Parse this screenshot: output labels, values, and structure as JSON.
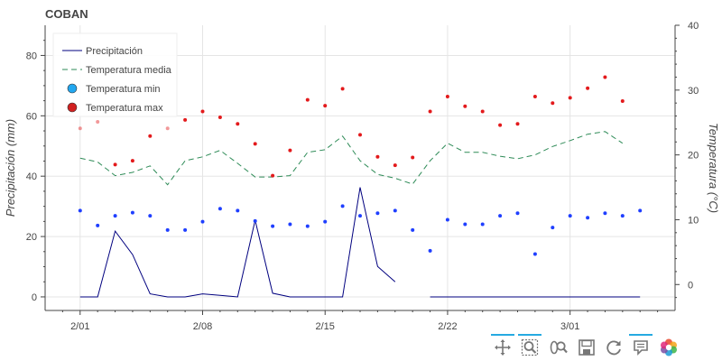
{
  "chart_data": {
    "type": "line+scatter",
    "title": "COBAN",
    "xlabel": "",
    "ylabel_left": "Precipitación (mm)",
    "ylabel_right": "Temperatura (°C)",
    "x_tick_labels": [
      "2/01",
      "2/08",
      "2/15",
      "2/22",
      "3/01"
    ],
    "ylim_left": [
      -4.5,
      90
    ],
    "ylim_right": [
      -4,
      40
    ],
    "yticks_left": [
      0,
      20,
      40,
      60,
      80
    ],
    "yticks_right": [
      0,
      10,
      20,
      30,
      40
    ],
    "grid": true,
    "legend_position": "top-left",
    "x_days": [
      0,
      1,
      2,
      3,
      4,
      5,
      6,
      7,
      8,
      9,
      10,
      11,
      12,
      13,
      14,
      15,
      16,
      17,
      18,
      19,
      20,
      21,
      22,
      23,
      24,
      25,
      26,
      27,
      28,
      29,
      30,
      31,
      32
    ],
    "series": [
      {
        "name": "Precipitación",
        "kind": "line",
        "axis": "left",
        "color": "#00007f",
        "values": [
          0,
          0,
          21.8,
          14,
          1,
          0,
          0,
          1,
          0.5,
          0,
          25.4,
          1.2,
          0,
          0,
          0,
          0,
          36.3,
          10.1,
          5,
          null,
          0,
          0,
          0,
          0,
          0,
          0,
          0,
          0,
          0,
          0,
          0,
          0,
          0
        ]
      },
      {
        "name": "Temperatura media",
        "kind": "dashed-line",
        "axis": "right",
        "color": "#2e8b57",
        "values": [
          19.5,
          18.9,
          16.8,
          17.3,
          18.3,
          15.4,
          19.1,
          19.7,
          20.7,
          18.7,
          16.6,
          16.6,
          16.8,
          20.4,
          20.8,
          22.9,
          19.1,
          17,
          16.4,
          15.5,
          19.1,
          21.8,
          20.4,
          20.4,
          19.8,
          19.4,
          20,
          21.3,
          22.2,
          23.2,
          23.6,
          21.8,
          null
        ],
        "x_offset": 0
      },
      {
        "name": "Temperatura min",
        "kind": "scatter",
        "axis": "right",
        "color": "#1f3fff",
        "values": [
          11.4,
          9.1,
          10.6,
          11.1,
          10.6,
          8.4,
          8.4,
          9.7,
          11.7,
          11.4,
          9.8,
          9.0,
          9.3,
          9.0,
          9.7,
          12.1,
          10.6,
          11.0,
          11.4,
          8.4,
          5.2,
          10.0,
          9.3,
          9.3,
          10.6,
          11.0,
          4.7,
          8.8,
          10.6,
          10.3,
          11.0,
          10.6,
          11.4
        ]
      },
      {
        "name": "Temperatura max",
        "kind": "scatter",
        "axis": "right",
        "color": "#e31a1c",
        "values": [
          24.1,
          25.1,
          18.5,
          19.1,
          22.9,
          24.1,
          25.4,
          26.7,
          25.8,
          24.8,
          21.7,
          16.8,
          20.7,
          28.5,
          27.6,
          30.2,
          23.1,
          19.7,
          18.4,
          19.6,
          26.7,
          29.0,
          27.5,
          26.7,
          24.6,
          24.8,
          29.0,
          28.0,
          28.8,
          30.3,
          32.0,
          28.3,
          null
        ],
        "faded_indices": [
          0,
          1,
          5
        ]
      }
    ],
    "x_tick_days": [
      0,
      7,
      14,
      21,
      28
    ]
  },
  "toolbar": {
    "tools": [
      {
        "name": "pan-tool",
        "icon": "move-icon",
        "active": true
      },
      {
        "name": "box-zoom-tool",
        "icon": "box-zoom-icon",
        "active": true
      },
      {
        "name": "wheel-zoom-tool",
        "icon": "wheel-zoom-icon",
        "active": false
      },
      {
        "name": "save-tool",
        "icon": "save-icon",
        "active": false
      },
      {
        "name": "reset-tool",
        "icon": "reset-icon",
        "active": false
      },
      {
        "name": "hover-tool",
        "icon": "hover-icon",
        "active": true
      },
      {
        "name": "bokeh-logo",
        "icon": "bokeh-logo-icon",
        "active": false
      }
    ]
  },
  "colors": {
    "grid": "#e5e5e5",
    "axis": "#444444",
    "toolbar_active": "#26aae1"
  }
}
